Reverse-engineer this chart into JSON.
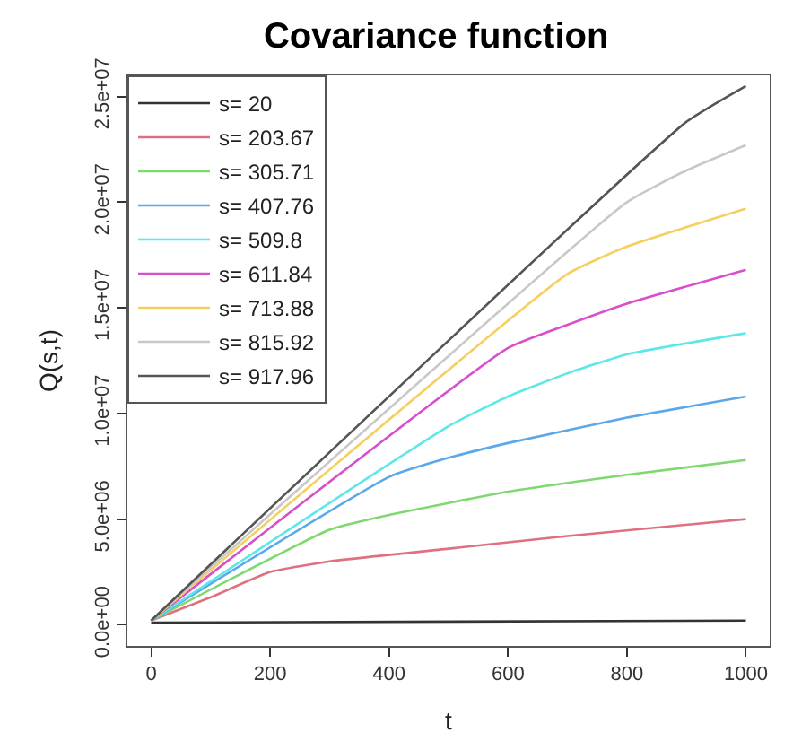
{
  "chart_data": {
    "type": "line",
    "title": "Covariance function",
    "xlabel": "t",
    "ylabel": "Q(s,t)",
    "xlim": [
      -40,
      1040
    ],
    "xticks": [
      0,
      200,
      400,
      600,
      800,
      1000
    ],
    "ylim": [
      -1000000,
      26000000
    ],
    "yticks": [
      {
        "value": 0,
        "label": "0.0e+00"
      },
      {
        "value": 5000000,
        "label": "5.0e+06"
      },
      {
        "value": 10000000,
        "label": "1.0e+07"
      },
      {
        "value": 15000000,
        "label": "1.5e+07"
      },
      {
        "value": 20000000,
        "label": "2.0e+07"
      },
      {
        "value": 25000000,
        "label": "2.5e+07"
      }
    ],
    "legend": "top left",
    "marker": "none",
    "line_style": "solid",
    "series": [
      {
        "name": "s= 20",
        "color": "#333333",
        "x": [
          0,
          1000
        ],
        "values": [
          100000,
          200000
        ]
      },
      {
        "name": "s= 203.67",
        "color": "#e0707f",
        "x": [
          0,
          100,
          200,
          300,
          500,
          700,
          1000
        ],
        "values": [
          200000,
          1300000,
          2500000,
          3000000,
          3600000,
          4200000,
          5000000
        ]
      },
      {
        "name": "s= 305.71",
        "color": "#7fd870",
        "x": [
          0,
          300,
          400,
          600,
          800,
          1000
        ],
        "values": [
          200000,
          4500000,
          5200000,
          6300000,
          7100000,
          7800000
        ]
      },
      {
        "name": "s= 407.76",
        "color": "#5aa8ea",
        "x": [
          0,
          400,
          500,
          600,
          800,
          1000
        ],
        "values": [
          200000,
          7000000,
          7900000,
          8600000,
          9800000,
          10800000
        ]
      },
      {
        "name": "s= 509.8",
        "color": "#5ce8e8",
        "x": [
          0,
          500,
          600,
          700,
          800,
          1000
        ],
        "values": [
          200000,
          9400000,
          10800000,
          11900000,
          12800000,
          13800000
        ]
      },
      {
        "name": "s= 611.84",
        "color": "#d84fcc",
        "x": [
          0,
          600,
          700,
          800,
          1000
        ],
        "values": [
          200000,
          13100000,
          14200000,
          15200000,
          16800000
        ]
      },
      {
        "name": "s= 713.88",
        "color": "#f5d060",
        "x": [
          0,
          700,
          800,
          1000
        ],
        "values": [
          200000,
          16600000,
          17900000,
          19700000
        ]
      },
      {
        "name": "s= 815.92",
        "color": "#c8c8c8",
        "x": [
          0,
          800,
          900,
          1000
        ],
        "values": [
          200000,
          20000000,
          21500000,
          22700000
        ]
      },
      {
        "name": "s= 917.96",
        "color": "#555555",
        "x": [
          0,
          900,
          1000
        ],
        "values": [
          200000,
          23800000,
          25500000
        ]
      }
    ]
  }
}
